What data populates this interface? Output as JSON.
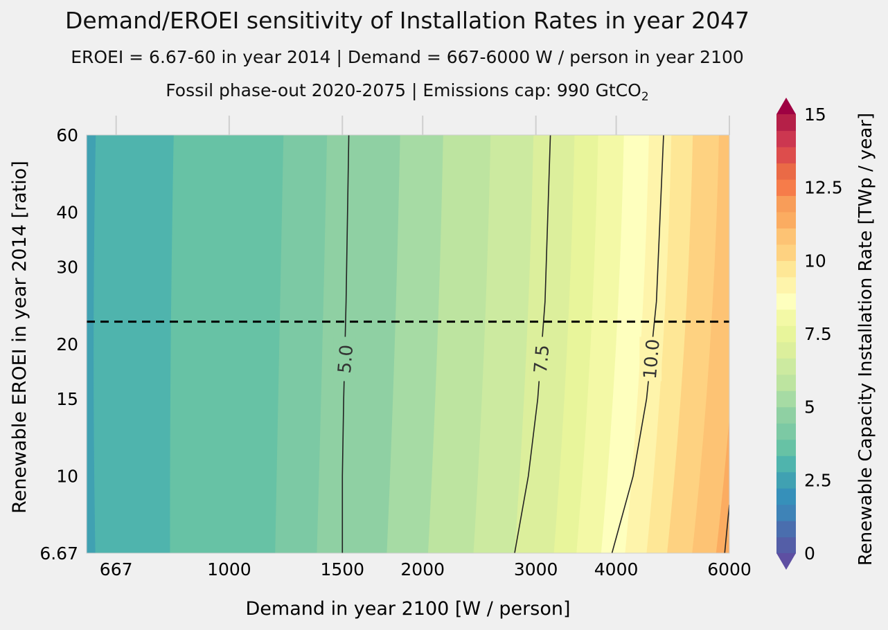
{
  "title": "Demand/EROEI sensitivity of Installation Rates in year 2047",
  "subtitle_1": "EROEI = 6.67-60 in year 2014   |   Demand = 667-6000 W / person in year 2100",
  "subtitle_2_prefix": "Fossil phase-out 2020-2075  |   Emissions cap: 990 GtCO",
  "subtitle_2_subscript": "2",
  "chart_data": {
    "type": "heatmap",
    "subtype": "filled contour",
    "xlabel": "Demand in year 2100 [W / person]",
    "ylabel": "Renewable EROEI in year 2014 [ratio]",
    "x_scale": "log",
    "y_scale": "log",
    "xlim": [
      600,
      6000
    ],
    "ylim": [
      6.67,
      60
    ],
    "x_ticks": [
      667,
      1000,
      1500,
      2000,
      3000,
      4000,
      6000
    ],
    "x_tick_labels": [
      "667",
      "1000",
      "1500",
      "2000",
      "3000",
      "4000",
      "6000"
    ],
    "y_ticks": [
      6.67,
      10,
      15,
      20,
      30,
      40,
      60
    ],
    "y_tick_labels": [
      "6.67",
      "10",
      "15",
      "20",
      "30",
      "40",
      "60"
    ],
    "reference_line": {
      "y": 22.5,
      "style": "dashed"
    },
    "contour_levels_labeled": [
      "5.0",
      "7.5",
      "10.0"
    ],
    "contours": [
      {
        "label": "5.0",
        "points": [
          [
            1535,
            60
          ],
          [
            1520,
            25
          ],
          [
            1507,
            15
          ],
          [
            1500,
            10
          ],
          [
            1500,
            6.67
          ]
        ]
      },
      {
        "label": "7.5",
        "points": [
          [
            3160,
            60
          ],
          [
            3100,
            25
          ],
          [
            3020,
            15
          ],
          [
            2920,
            10
          ],
          [
            2780,
            6.67
          ]
        ]
      },
      {
        "label": "10.0",
        "points": [
          [
            4740,
            60
          ],
          [
            4620,
            25
          ],
          [
            4460,
            15
          ],
          [
            4250,
            10
          ],
          [
            3940,
            6.67
          ]
        ]
      },
      {
        "label": "",
        "points": [
          [
            6000,
            8.6
          ],
          [
            5940,
            7.4
          ],
          [
            5900,
            6.67
          ]
        ]
      }
    ],
    "colorbar": {
      "label": "Renewable Capacity Installation Rate [TWp / year]",
      "min": 0,
      "max": 15,
      "step": 0.625,
      "extend": "both",
      "ticks": [
        0,
        2.5,
        5,
        7.5,
        10,
        12.5,
        15
      ],
      "tick_labels": [
        "0",
        "2.5",
        "5",
        "7.5",
        "10",
        "12.5",
        "15"
      ],
      "colormap": "Spectral_r",
      "colors": [
        "#5e4fa2",
        "#545ea7",
        "#4a6eae",
        "#3e83b7",
        "#3690ba",
        "#40a1b2",
        "#4fb4ad",
        "#67c2a5",
        "#7cc9a4",
        "#8fd0a3",
        "#a6dba4",
        "#bde4a0",
        "#cceaa0",
        "#dcef9c",
        "#e8f59b",
        "#f3f9a6",
        "#feffbe",
        "#fef4ab",
        "#fee796",
        "#fed281",
        "#fdc374",
        "#fbac61",
        "#f89d59",
        "#f67c4a",
        "#ea6a46",
        "#dd4d4c",
        "#cc3750",
        "#b52048",
        "#9e0142"
      ]
    },
    "rate_bands_at_y_min": [
      {
        "x_from": 600,
        "x_to": 620,
        "value": "2.19-2.81"
      },
      {
        "x_from": 620,
        "x_to": 810,
        "value": "2.81-3.44"
      },
      {
        "x_from": 810,
        "x_to": 1180,
        "value": "3.44-4.06"
      },
      {
        "x_from": 1180,
        "x_to": 1370,
        "value": "4.06-4.69"
      },
      {
        "x_from": 1370,
        "x_to": 1760,
        "value": "4.69-5.31"
      },
      {
        "x_from": 1760,
        "x_to": 2040,
        "value": "5.31-5.94"
      },
      {
        "x_from": 2040,
        "x_to": 2400,
        "value": "5.94-6.56"
      },
      {
        "x_from": 2400,
        "x_to": 2780,
        "value": "6.56-7.19"
      },
      {
        "x_from": 2780,
        "x_to": 3200,
        "value": "7.19-7.81"
      },
      {
        "x_from": 3200,
        "x_to": 3470,
        "value": "7.81-8.44"
      },
      {
        "x_from": 3470,
        "x_to": 3790,
        "value": "8.44-9.06"
      },
      {
        "x_from": 3790,
        "x_to": 4130,
        "value": "9.06-9.69"
      },
      {
        "x_from": 4130,
        "x_to": 4460,
        "value": "9.69-10.31"
      },
      {
        "x_from": 4460,
        "x_to": 4800,
        "value": "10.31-10.94"
      },
      {
        "x_from": 4800,
        "x_to": 5250,
        "value": "10.94-11.56"
      },
      {
        "x_from": 5250,
        "x_to": 5720,
        "value": "11.56-12.19"
      },
      {
        "x_from": 5720,
        "x_to": 6000,
        "value": "12.19-12.81"
      }
    ]
  }
}
